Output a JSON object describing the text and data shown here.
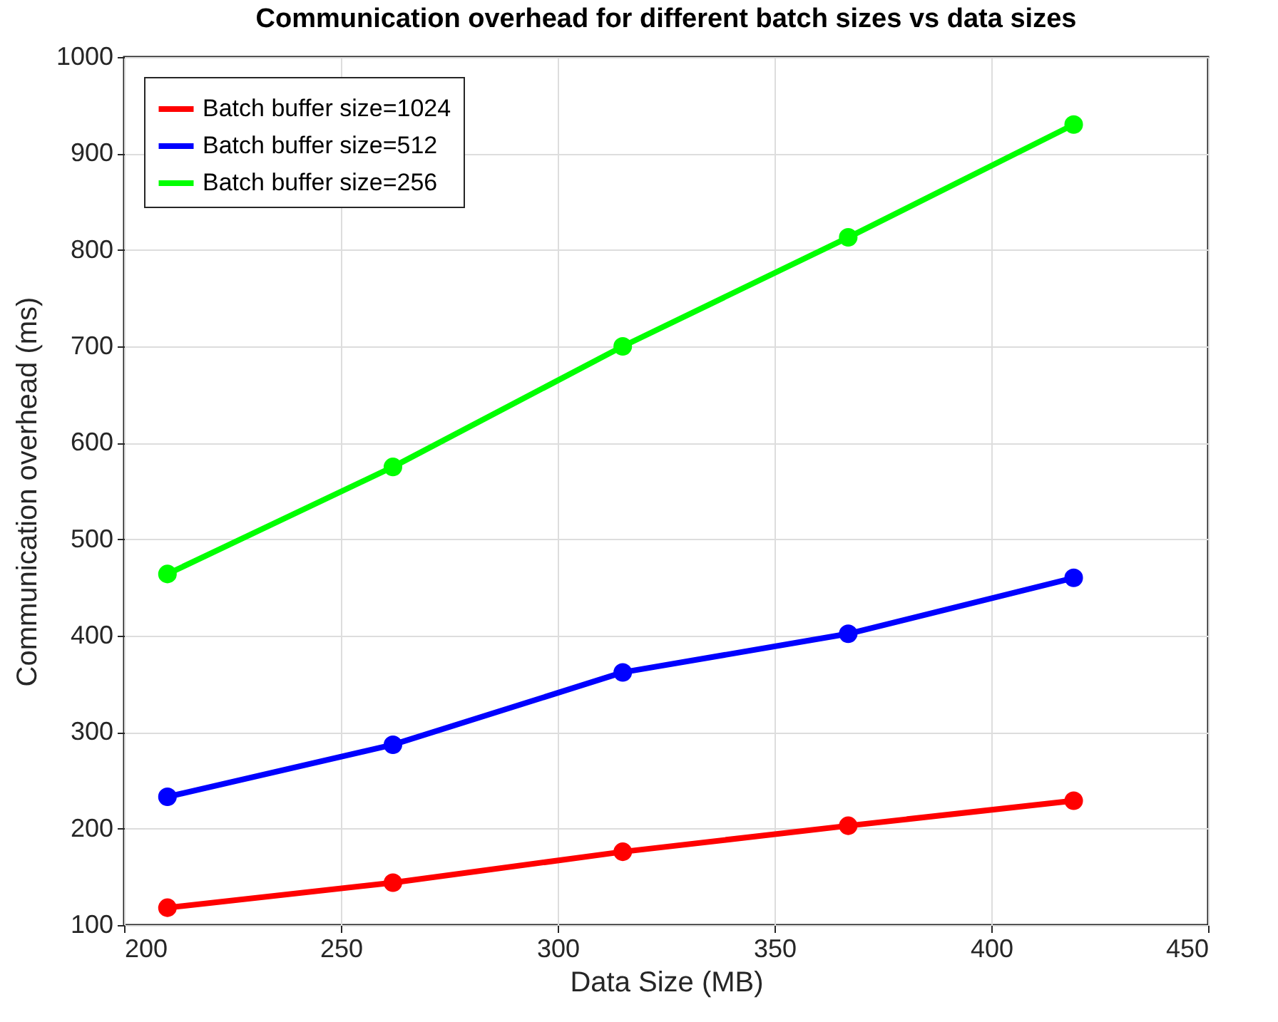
{
  "chart_data": {
    "type": "line",
    "title": "Communication overhead for different batch sizes vs data sizes",
    "xlabel": "Data Size (MB)",
    "ylabel": "Communication overhead (ms)",
    "x": [
      210,
      262,
      315,
      367,
      419
    ],
    "series": [
      {
        "name": "Batch buffer size=1024",
        "color": "#ff0000",
        "values": [
          118,
          144,
          176,
          203,
          229
        ]
      },
      {
        "name": "Batch buffer size=512",
        "color": "#0000ff",
        "values": [
          233,
          287,
          362,
          402,
          460
        ]
      },
      {
        "name": "Batch buffer size=256",
        "color": "#00ff00",
        "values": [
          464,
          575,
          700,
          813,
          930
        ]
      }
    ],
    "xlim": [
      200,
      450
    ],
    "xticks": [
      200,
      250,
      300,
      350,
      400,
      450
    ],
    "ylim": [
      100,
      1000
    ],
    "yticks": [
      100,
      200,
      300,
      400,
      500,
      600,
      700,
      800,
      900,
      1000
    ],
    "grid": true,
    "legend": "top left",
    "marker": "circle",
    "line_style": "solid"
  }
}
